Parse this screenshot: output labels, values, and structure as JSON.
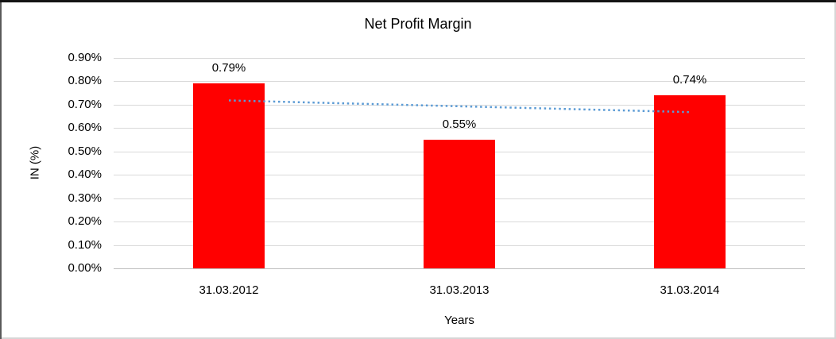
{
  "chart_data": {
    "type": "bar",
    "title": "Net Profit Margin",
    "xlabel": "Years",
    "ylabel": "IN (%)",
    "categories": [
      "31.03.2012",
      "31.03.2013",
      "31.03.2014"
    ],
    "values": [
      0.79,
      0.55,
      0.74
    ],
    "data_labels": [
      "0.79%",
      "0.55%",
      "0.74%"
    ],
    "ylim": [
      0,
      0.9
    ],
    "ytick_step": 0.1,
    "ytick_labels": [
      "0.00%",
      "0.10%",
      "0.20%",
      "0.30%",
      "0.40%",
      "0.50%",
      "0.60%",
      "0.70%",
      "0.80%",
      "0.90%"
    ],
    "grid": true,
    "legend": false,
    "trendline": {
      "type": "linear",
      "style": "dotted"
    },
    "colors": {
      "bar": "#FF0000",
      "trendline": "#5B9BD5",
      "gridline": "#D9D9D9",
      "axis_line": "#BFBFBF",
      "text": "#000000",
      "background": "#FFFFFF"
    }
  }
}
